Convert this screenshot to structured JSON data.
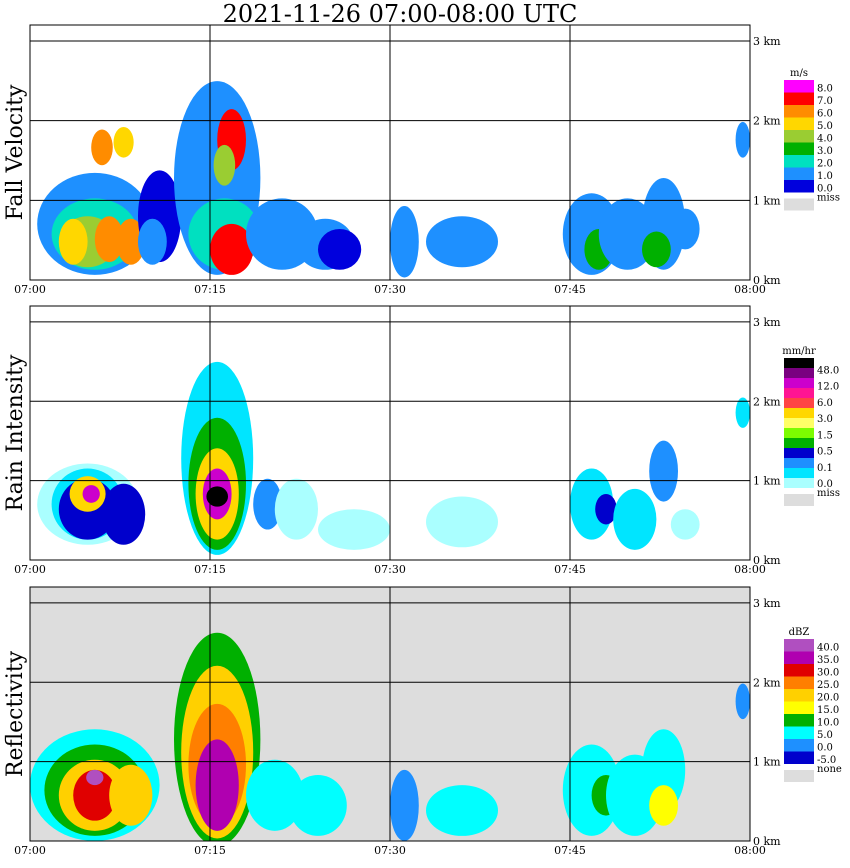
{
  "title": "2021-11-26   07:00-08:00 UTC",
  "chart_data": [
    {
      "type": "heatmap",
      "ylabel": "Fall Velocity",
      "x_ticks": [
        "07:00",
        "07:15",
        "07:30",
        "07:45",
        "08:00"
      ],
      "y_ticks": [
        "0 km",
        "1 km",
        "2 km",
        "3 km"
      ],
      "ylim_km": [
        0,
        3.2
      ],
      "xlim": [
        "07:00",
        "08:00"
      ],
      "background": "#ffffff",
      "legend": {
        "unit": "m/s",
        "labels": [
          "8.0",
          "7.0",
          "6.0",
          "5.0",
          "4.0",
          "3.0",
          "2.0",
          "1.0",
          "0.0"
        ],
        "colors": [
          "#ff00ff",
          "#ff0000",
          "#ff8c00",
          "#ffd700",
          "#9acd32",
          "#00b000",
          "#00e0c0",
          "#1e90ff",
          "#0000dd"
        ],
        "missing_label": "miss",
        "missing_color": "#dddddd"
      }
    },
    {
      "type": "heatmap",
      "ylabel": "Rain Intensity",
      "x_ticks": [
        "07:00",
        "07:15",
        "07:30",
        "07:45",
        "08:00"
      ],
      "y_ticks": [
        "0 km",
        "1 km",
        "2 km",
        "3 km"
      ],
      "ylim_km": [
        0,
        3.2
      ],
      "xlim": [
        "07:00",
        "08:00"
      ],
      "background": "#ffffff",
      "legend": {
        "unit": "mm/hr",
        "labels": [
          "48.0",
          "12.0",
          "6.0",
          "3.0",
          "1.5",
          "0.5",
          "0.1",
          "0.0"
        ],
        "colors": [
          "#000000",
          "#7a0080",
          "#cc00cc",
          "#ff1493",
          "#ff4444",
          "#ffd700",
          "#ffff66",
          "#7cfc00",
          "#00b000",
          "#0000cc",
          "#1e90ff",
          "#00e5ff",
          "#aaffff"
        ],
        "missing_label": "miss",
        "missing_color": "#dddddd"
      }
    },
    {
      "type": "heatmap",
      "ylabel": "Reflectivity",
      "x_ticks": [
        "07:00",
        "07:15",
        "07:30",
        "07:45",
        "08:00"
      ],
      "y_ticks": [
        "0 km",
        "1 km",
        "2 km",
        "3 km"
      ],
      "ylim_km": [
        0,
        3.2
      ],
      "xlim": [
        "07:00",
        "08:00"
      ],
      "background": "#dddddd",
      "legend": {
        "unit": "dBZ",
        "labels": [
          "40.0",
          "35.0",
          "30.0",
          "25.0",
          "20.0",
          "15.0",
          "10.0",
          "5.0",
          "0.0",
          "-5.0"
        ],
        "colors": [
          "#b04fc0",
          "#b000b0",
          "#e00000",
          "#ff7f00",
          "#ffd000",
          "#ffff00",
          "#00b000",
          "#00ffff",
          "#1e90ff",
          "#0000cc"
        ],
        "missing_label": "none",
        "missing_color": "#dddddd"
      }
    }
  ]
}
